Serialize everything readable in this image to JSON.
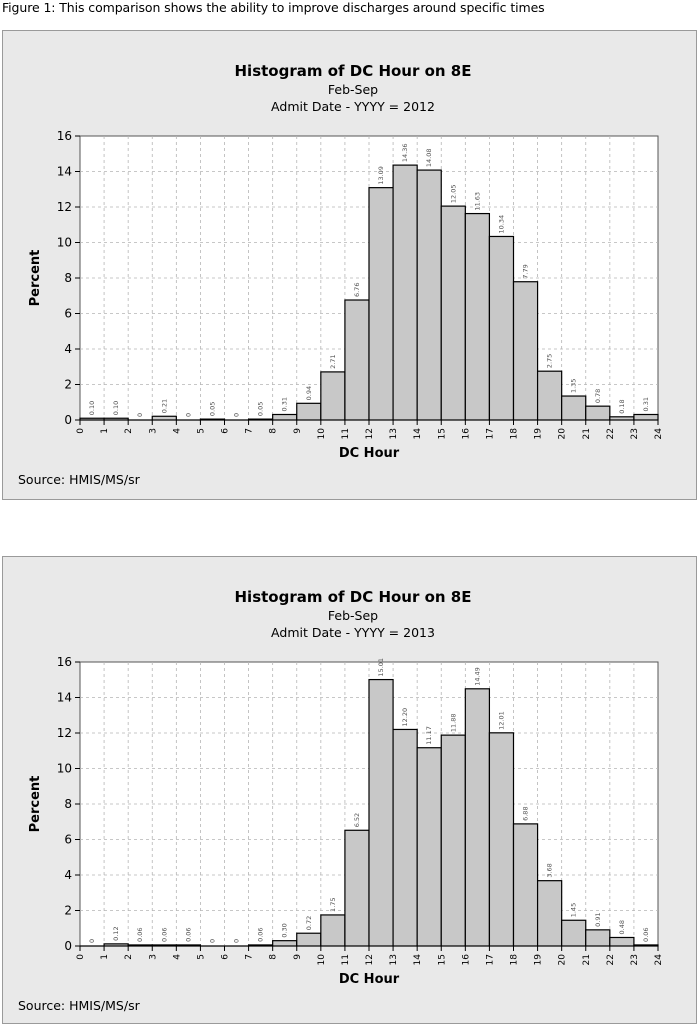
{
  "caption": "Figure 1:  This comparison shows the ability to improve discharges around specific times",
  "colors": {
    "bar_fill": "#c8c8c8",
    "bar_stroke": "#000000",
    "plot_bg": "#ffffff",
    "panel_bg": "#e9e9e9",
    "grid": "#b5b5b5"
  },
  "chart_data": [
    {
      "type": "bar",
      "title": "Histogram of DC Hour on 8E",
      "subtitle": "Feb-Sep",
      "subtitle2": "Admit Date - YYYY = 2012",
      "xlabel": "DC Hour",
      "ylabel": "Percent",
      "ylim": [
        0,
        16
      ],
      "yticks": [
        0,
        2,
        4,
        6,
        8,
        10,
        12,
        14,
        16
      ],
      "xlim": [
        0,
        24
      ],
      "xticks": [
        0,
        1,
        2,
        3,
        4,
        5,
        6,
        7,
        8,
        9,
        10,
        11,
        12,
        13,
        14,
        15,
        16,
        17,
        18,
        19,
        20,
        21,
        22,
        23,
        24
      ],
      "grid": true,
      "source": "Source:  HMIS/MS/sr",
      "bins": [
        0,
        1,
        2,
        3,
        4,
        5,
        6,
        7,
        8,
        9,
        10,
        11,
        12,
        13,
        14,
        15,
        16,
        17,
        18,
        19,
        20,
        21,
        22,
        23
      ],
      "values": [
        0.1,
        0.1,
        0,
        0.21,
        0,
        0.05,
        0,
        0.05,
        0.31,
        0.94,
        2.71,
        6.76,
        13.09,
        14.36,
        14.08,
        12.05,
        11.63,
        10.34,
        7.79,
        2.75,
        1.35,
        0.78,
        0.18,
        0.31
      ],
      "data_labels": [
        "0.10",
        "0.10",
        "0",
        "0.21",
        "0",
        "0.05",
        "0",
        "0.05",
        "0.31",
        "0.94",
        "2.71",
        "6.76",
        "13.09",
        "14.36",
        "14.08",
        "12.05",
        "11.63",
        "10.34",
        "7.79",
        "2.75",
        "1.35",
        "0.78",
        "0.18",
        "0.31"
      ]
    },
    {
      "type": "bar",
      "title": "Histogram of DC Hour on 8E",
      "subtitle": "Feb-Sep",
      "subtitle2": "Admit Date - YYYY = 2013",
      "xlabel": "DC Hour",
      "ylabel": "Percent",
      "ylim": [
        0,
        16
      ],
      "yticks": [
        0,
        2,
        4,
        6,
        8,
        10,
        12,
        14,
        16
      ],
      "xlim": [
        0,
        24
      ],
      "xticks": [
        0,
        1,
        2,
        3,
        4,
        5,
        6,
        7,
        8,
        9,
        10,
        11,
        12,
        13,
        14,
        15,
        16,
        17,
        18,
        19,
        20,
        21,
        22,
        23,
        24
      ],
      "grid": true,
      "source": "Source:  HMIS/MS/sr",
      "bins": [
        0,
        1,
        2,
        3,
        4,
        5,
        6,
        7,
        8,
        9,
        10,
        11,
        12,
        13,
        14,
        15,
        16,
        17,
        18,
        19,
        20,
        21,
        22,
        23
      ],
      "values": [
        0,
        0.12,
        0.06,
        0.06,
        0.06,
        0,
        0,
        0.06,
        0.3,
        0.72,
        1.75,
        6.52,
        15.01,
        12.2,
        11.17,
        11.88,
        14.49,
        12.01,
        6.88,
        3.68,
        1.45,
        0.91,
        0.48,
        0.06
      ],
      "data_labels": [
        "0",
        "0.12",
        "0.06",
        "0.06",
        "0.06",
        "0",
        "0",
        "0.06",
        "0.30",
        "0.72",
        "1.75",
        "6.52",
        "15.01",
        "12.20",
        "11.17",
        "11.88",
        "14.49",
        "12.01",
        "6.88",
        "3.68",
        "1.45",
        "0.91",
        "0.48",
        "0.06"
      ]
    }
  ]
}
